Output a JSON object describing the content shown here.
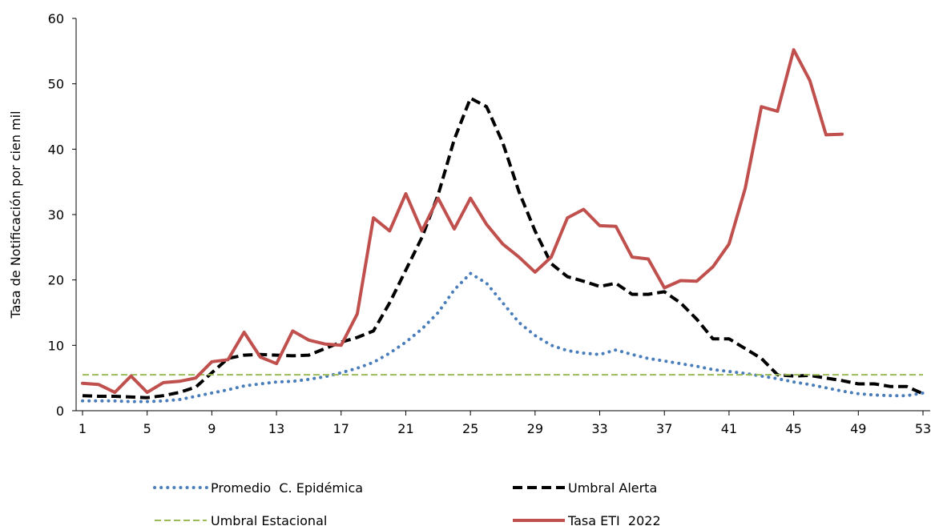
{
  "chart_data": {
    "type": "line",
    "ylabel": "Tasa de Notificación por cien mil",
    "xlabel": "",
    "xlim": [
      1,
      53
    ],
    "ylim": [
      0,
      60
    ],
    "x_ticks": [
      1,
      5,
      9,
      13,
      17,
      21,
      25,
      29,
      33,
      37,
      41,
      45,
      49,
      53
    ],
    "y_ticks": [
      0,
      10,
      20,
      30,
      40,
      50,
      60
    ],
    "grid": false,
    "legend_position": "bottom",
    "series": [
      {
        "name": "Promedio  C. Epidémica",
        "color": "#4a7ebb",
        "style": "dotted",
        "x": [
          1,
          2,
          3,
          4,
          5,
          6,
          7,
          8,
          9,
          10,
          11,
          12,
          13,
          14,
          15,
          16,
          17,
          18,
          19,
          20,
          21,
          22,
          23,
          24,
          25,
          26,
          27,
          28,
          29,
          30,
          31,
          32,
          33,
          34,
          35,
          36,
          37,
          38,
          39,
          40,
          41,
          42,
          43,
          44,
          45,
          46,
          47,
          48,
          49,
          50,
          51,
          52,
          53
        ],
        "values": [
          1.5,
          1.5,
          1.5,
          1.4,
          1.4,
          1.5,
          1.7,
          2.2,
          2.7,
          3.2,
          3.8,
          4.1,
          4.4,
          4.5,
          4.8,
          5.2,
          5.8,
          6.5,
          7.4,
          8.8,
          10.5,
          12.5,
          15.0,
          18.5,
          21.0,
          19.5,
          16.5,
          13.5,
          11.5,
          10.0,
          9.2,
          8.8,
          8.6,
          9.3,
          8.6,
          8.0,
          7.6,
          7.2,
          6.8,
          6.3,
          6.0,
          5.7,
          5.3,
          4.9,
          4.4,
          4.0,
          3.5,
          3.0,
          2.6,
          2.4,
          2.3,
          2.3,
          2.7
        ]
      },
      {
        "name": "Umbral Alerta",
        "color": "#000000",
        "style": "dashed",
        "x": [
          1,
          2,
          3,
          4,
          5,
          6,
          7,
          8,
          9,
          10,
          11,
          12,
          13,
          14,
          15,
          16,
          17,
          18,
          19,
          20,
          21,
          22,
          23,
          24,
          25,
          26,
          27,
          28,
          29,
          30,
          31,
          32,
          33,
          34,
          35,
          36,
          37,
          38,
          39,
          40,
          41,
          42,
          43,
          44,
          45,
          46,
          47,
          48,
          49,
          50,
          51,
          52,
          53
        ],
        "values": [
          2.3,
          2.2,
          2.2,
          2.1,
          2.0,
          2.3,
          2.8,
          3.6,
          5.8,
          8.0,
          8.5,
          8.6,
          8.5,
          8.4,
          8.5,
          9.5,
          10.5,
          11.2,
          12.2,
          16.5,
          21.5,
          26.5,
          33.0,
          41.5,
          47.8,
          46.5,
          41.0,
          33.5,
          27.5,
          22.5,
          20.5,
          19.8,
          19.0,
          19.5,
          17.8,
          17.8,
          18.2,
          16.5,
          14.0,
          11.0,
          11.0,
          9.5,
          8.0,
          5.5,
          5.3,
          5.4,
          5.0,
          4.6,
          4.1,
          4.1,
          3.7,
          3.7,
          2.6
        ]
      },
      {
        "name": "Umbral Estacional",
        "color": "#9bbb59",
        "style": "dashed-thin",
        "x": [
          1,
          53
        ],
        "values": [
          5.5,
          5.5
        ]
      },
      {
        "name": "Tasa ETI  2022",
        "color": "#c0504d",
        "style": "solid",
        "x": [
          1,
          2,
          3,
          4,
          5,
          6,
          7,
          8,
          9,
          10,
          11,
          12,
          13,
          14,
          15,
          16,
          17,
          18,
          19,
          20,
          21,
          22,
          23,
          24,
          25,
          26,
          27,
          28,
          29,
          30,
          31,
          32,
          33,
          34,
          35,
          36,
          37,
          38,
          39,
          40,
          41,
          42,
          43,
          44,
          45,
          46,
          47,
          48
        ],
        "values": [
          4.2,
          4.0,
          2.8,
          5.3,
          2.8,
          4.3,
          4.5,
          5.0,
          7.5,
          7.8,
          12.0,
          8.2,
          7.2,
          12.2,
          10.8,
          10.2,
          10.0,
          14.8,
          29.5,
          27.5,
          33.2,
          27.5,
          32.5,
          27.8,
          32.5,
          28.5,
          25.5,
          23.5,
          21.2,
          23.5,
          29.5,
          30.8,
          28.3,
          28.2,
          23.5,
          23.2,
          18.8,
          19.9,
          19.8,
          22.0,
          25.5,
          34.0,
          46.5,
          45.8,
          55.2,
          50.5,
          42.2,
          42.3
        ]
      }
    ]
  }
}
